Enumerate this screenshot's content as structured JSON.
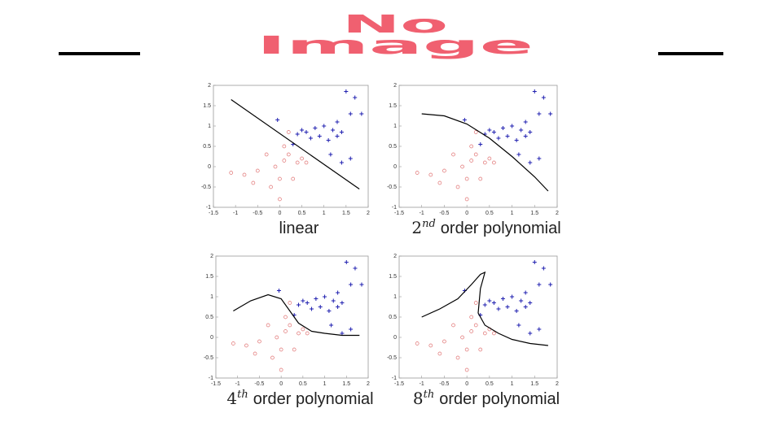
{
  "slide": {
    "placeholder_lines": [
      "No",
      "Image"
    ]
  },
  "chart_data": [
    {
      "type": "scatter",
      "title": "linear",
      "xlim": [
        -1.5,
        2
      ],
      "xticks": [
        -1.5,
        -1,
        -0.5,
        0,
        0.5,
        1,
        1.5,
        2
      ],
      "ylim": [
        -1,
        2
      ],
      "yticks": [
        -1,
        -0.5,
        0,
        0.5,
        1,
        1.5,
        2
      ],
      "grid": false,
      "series": [
        {
          "color": "#e07070",
          "marker": "o",
          "x": [
            -1.1,
            -0.8,
            -0.6,
            -0.5,
            -0.3,
            -0.2,
            0,
            0.1,
            0.2,
            0.3,
            0.4,
            0.5,
            0.6,
            -0.1,
            0,
            0.2,
            0.1
          ],
          "values": [
            -0.15,
            -0.2,
            -0.4,
            -0.1,
            0.3,
            -0.5,
            -0.8,
            0.15,
            0.3,
            -0.3,
            0.1,
            0.2,
            0.1,
            0,
            -0.3,
            0.85,
            0.5
          ]
        },
        {
          "color": "#2020b0",
          "marker": "+",
          "x": [
            0.4,
            0.5,
            0.6,
            0.7,
            0.8,
            0.9,
            1,
            1.1,
            1.2,
            1.3,
            1.4,
            1.5,
            1.6,
            1.7,
            1.85,
            1.3,
            1.6,
            1.4,
            -0.05,
            0.3,
            1.15
          ],
          "values": [
            0.8,
            0.9,
            0.85,
            0.7,
            0.95,
            0.75,
            1,
            0.65,
            0.9,
            0.75,
            0.85,
            1.85,
            1.3,
            1.7,
            1.3,
            1.1,
            0.2,
            0.1,
            1.15,
            0.55,
            0.3
          ]
        },
        {
          "color": "#000000",
          "marker": "line",
          "x": [
            -1.1,
            1.8
          ],
          "values": [
            1.65,
            -0.55
          ]
        }
      ]
    },
    {
      "type": "scatter",
      "title": {
        "base": "2",
        "sup": "nd",
        "text": "order polynomial"
      },
      "xlim": [
        -1.5,
        2
      ],
      "xticks": [
        -1.5,
        -1,
        -0.5,
        0,
        0.5,
        1,
        1.5,
        2
      ],
      "ylim": [
        -1,
        2
      ],
      "yticks": [
        -1,
        -0.5,
        0,
        0.5,
        1,
        1.5,
        2
      ],
      "grid": false,
      "series": [
        {
          "color": "#e07070",
          "marker": "o",
          "x": [
            -1.1,
            -0.8,
            -0.6,
            -0.5,
            -0.3,
            -0.2,
            0,
            0.1,
            0.2,
            0.3,
            0.4,
            0.5,
            0.6,
            -0.1,
            0,
            0.2,
            0.1
          ],
          "values": [
            -0.15,
            -0.2,
            -0.4,
            -0.1,
            0.3,
            -0.5,
            -0.8,
            0.15,
            0.3,
            -0.3,
            0.1,
            0.2,
            0.1,
            0,
            -0.3,
            0.85,
            0.5
          ]
        },
        {
          "color": "#2020b0",
          "marker": "+",
          "x": [
            0.4,
            0.5,
            0.6,
            0.7,
            0.8,
            0.9,
            1,
            1.1,
            1.2,
            1.3,
            1.4,
            1.5,
            1.6,
            1.7,
            1.85,
            1.3,
            1.6,
            1.4,
            -0.05,
            0.3,
            1.15
          ],
          "values": [
            0.8,
            0.9,
            0.85,
            0.7,
            0.95,
            0.75,
            1,
            0.65,
            0.9,
            0.75,
            0.85,
            1.85,
            1.3,
            1.7,
            1.3,
            1.1,
            0.2,
            0.1,
            1.15,
            0.55,
            0.3
          ]
        },
        {
          "color": "#000000",
          "marker": "line",
          "x": [
            -1,
            -0.5,
            0,
            0.5,
            1,
            1.5,
            1.8
          ],
          "values": [
            1.3,
            1.25,
            1.05,
            0.7,
            0.25,
            -0.25,
            -0.6
          ]
        }
      ]
    },
    {
      "type": "scatter",
      "title": {
        "base": "4",
        "sup": "th",
        "text": "order polynomial"
      },
      "xlim": [
        -1.5,
        2
      ],
      "xticks": [
        -1.5,
        -1,
        -0.5,
        0,
        0.5,
        1,
        1.5,
        2
      ],
      "ylim": [
        -1,
        2
      ],
      "yticks": [
        -1,
        -0.5,
        0,
        0.5,
        1,
        1.5,
        2
      ],
      "grid": false,
      "series": [
        {
          "color": "#e07070",
          "marker": "o",
          "x": [
            -1.1,
            -0.8,
            -0.6,
            -0.5,
            -0.3,
            -0.2,
            0,
            0.1,
            0.2,
            0.3,
            0.4,
            0.5,
            0.6,
            -0.1,
            0,
            0.2,
            0.1
          ],
          "values": [
            -0.15,
            -0.2,
            -0.4,
            -0.1,
            0.3,
            -0.5,
            -0.8,
            0.15,
            0.3,
            -0.3,
            0.1,
            0.2,
            0.1,
            0,
            -0.3,
            0.85,
            0.5
          ]
        },
        {
          "color": "#2020b0",
          "marker": "+",
          "x": [
            0.4,
            0.5,
            0.6,
            0.7,
            0.8,
            0.9,
            1,
            1.1,
            1.2,
            1.3,
            1.4,
            1.5,
            1.6,
            1.7,
            1.85,
            1.3,
            1.6,
            1.4,
            -0.05,
            0.3,
            1.15
          ],
          "values": [
            0.8,
            0.9,
            0.85,
            0.7,
            0.95,
            0.75,
            1,
            0.65,
            0.9,
            0.75,
            0.85,
            1.85,
            1.3,
            1.7,
            1.3,
            1.1,
            0.2,
            0.1,
            1.15,
            0.55,
            0.3
          ]
        },
        {
          "color": "#000000",
          "marker": "line",
          "x": [
            -1.1,
            -0.7,
            -0.3,
            0,
            0.2,
            0.4,
            0.7,
            1,
            1.4,
            1.8
          ],
          "values": [
            0.65,
            0.9,
            1.05,
            0.95,
            0.65,
            0.35,
            0.15,
            0.1,
            0.05,
            0.05
          ]
        }
      ]
    },
    {
      "type": "scatter",
      "title": {
        "base": "8",
        "sup": "th",
        "text": "order polynomial"
      },
      "xlim": [
        -1.5,
        2
      ],
      "xticks": [
        -1.5,
        -1,
        -0.5,
        0,
        0.5,
        1,
        1.5,
        2
      ],
      "ylim": [
        -1,
        2
      ],
      "yticks": [
        -1,
        -0.5,
        0,
        0.5,
        1,
        1.5,
        2
      ],
      "grid": false,
      "series": [
        {
          "color": "#e07070",
          "marker": "o",
          "x": [
            -1.1,
            -0.8,
            -0.6,
            -0.5,
            -0.3,
            -0.2,
            0,
            0.1,
            0.2,
            0.3,
            0.4,
            0.5,
            0.6,
            -0.1,
            0,
            0.2,
            0.1
          ],
          "values": [
            -0.15,
            -0.2,
            -0.4,
            -0.1,
            0.3,
            -0.5,
            -0.8,
            0.15,
            0.3,
            -0.3,
            0.1,
            0.2,
            0.1,
            0,
            -0.3,
            0.85,
            0.5
          ]
        },
        {
          "color": "#2020b0",
          "marker": "+",
          "x": [
            0.4,
            0.5,
            0.6,
            0.7,
            0.8,
            0.9,
            1,
            1.1,
            1.2,
            1.3,
            1.4,
            1.5,
            1.6,
            1.7,
            1.85,
            1.3,
            1.6,
            1.4,
            -0.05,
            0.3,
            1.15
          ],
          "values": [
            0.8,
            0.9,
            0.85,
            0.7,
            0.95,
            0.75,
            1,
            0.65,
            0.9,
            0.75,
            0.85,
            1.85,
            1.3,
            1.7,
            1.3,
            1.1,
            0.2,
            0.1,
            1.15,
            0.55,
            0.3
          ]
        },
        {
          "color": "#000000",
          "marker": "line",
          "x": [
            -1,
            -0.6,
            -0.2,
            0.1,
            0.3,
            0.4,
            0.3,
            0.25,
            0.4,
            0.7,
            1,
            1.4,
            1.8
          ],
          "values": [
            0.5,
            0.7,
            0.95,
            1.3,
            1.55,
            1.6,
            1.2,
            0.6,
            0.3,
            0.1,
            -0.05,
            -0.15,
            -0.2
          ]
        }
      ]
    }
  ]
}
